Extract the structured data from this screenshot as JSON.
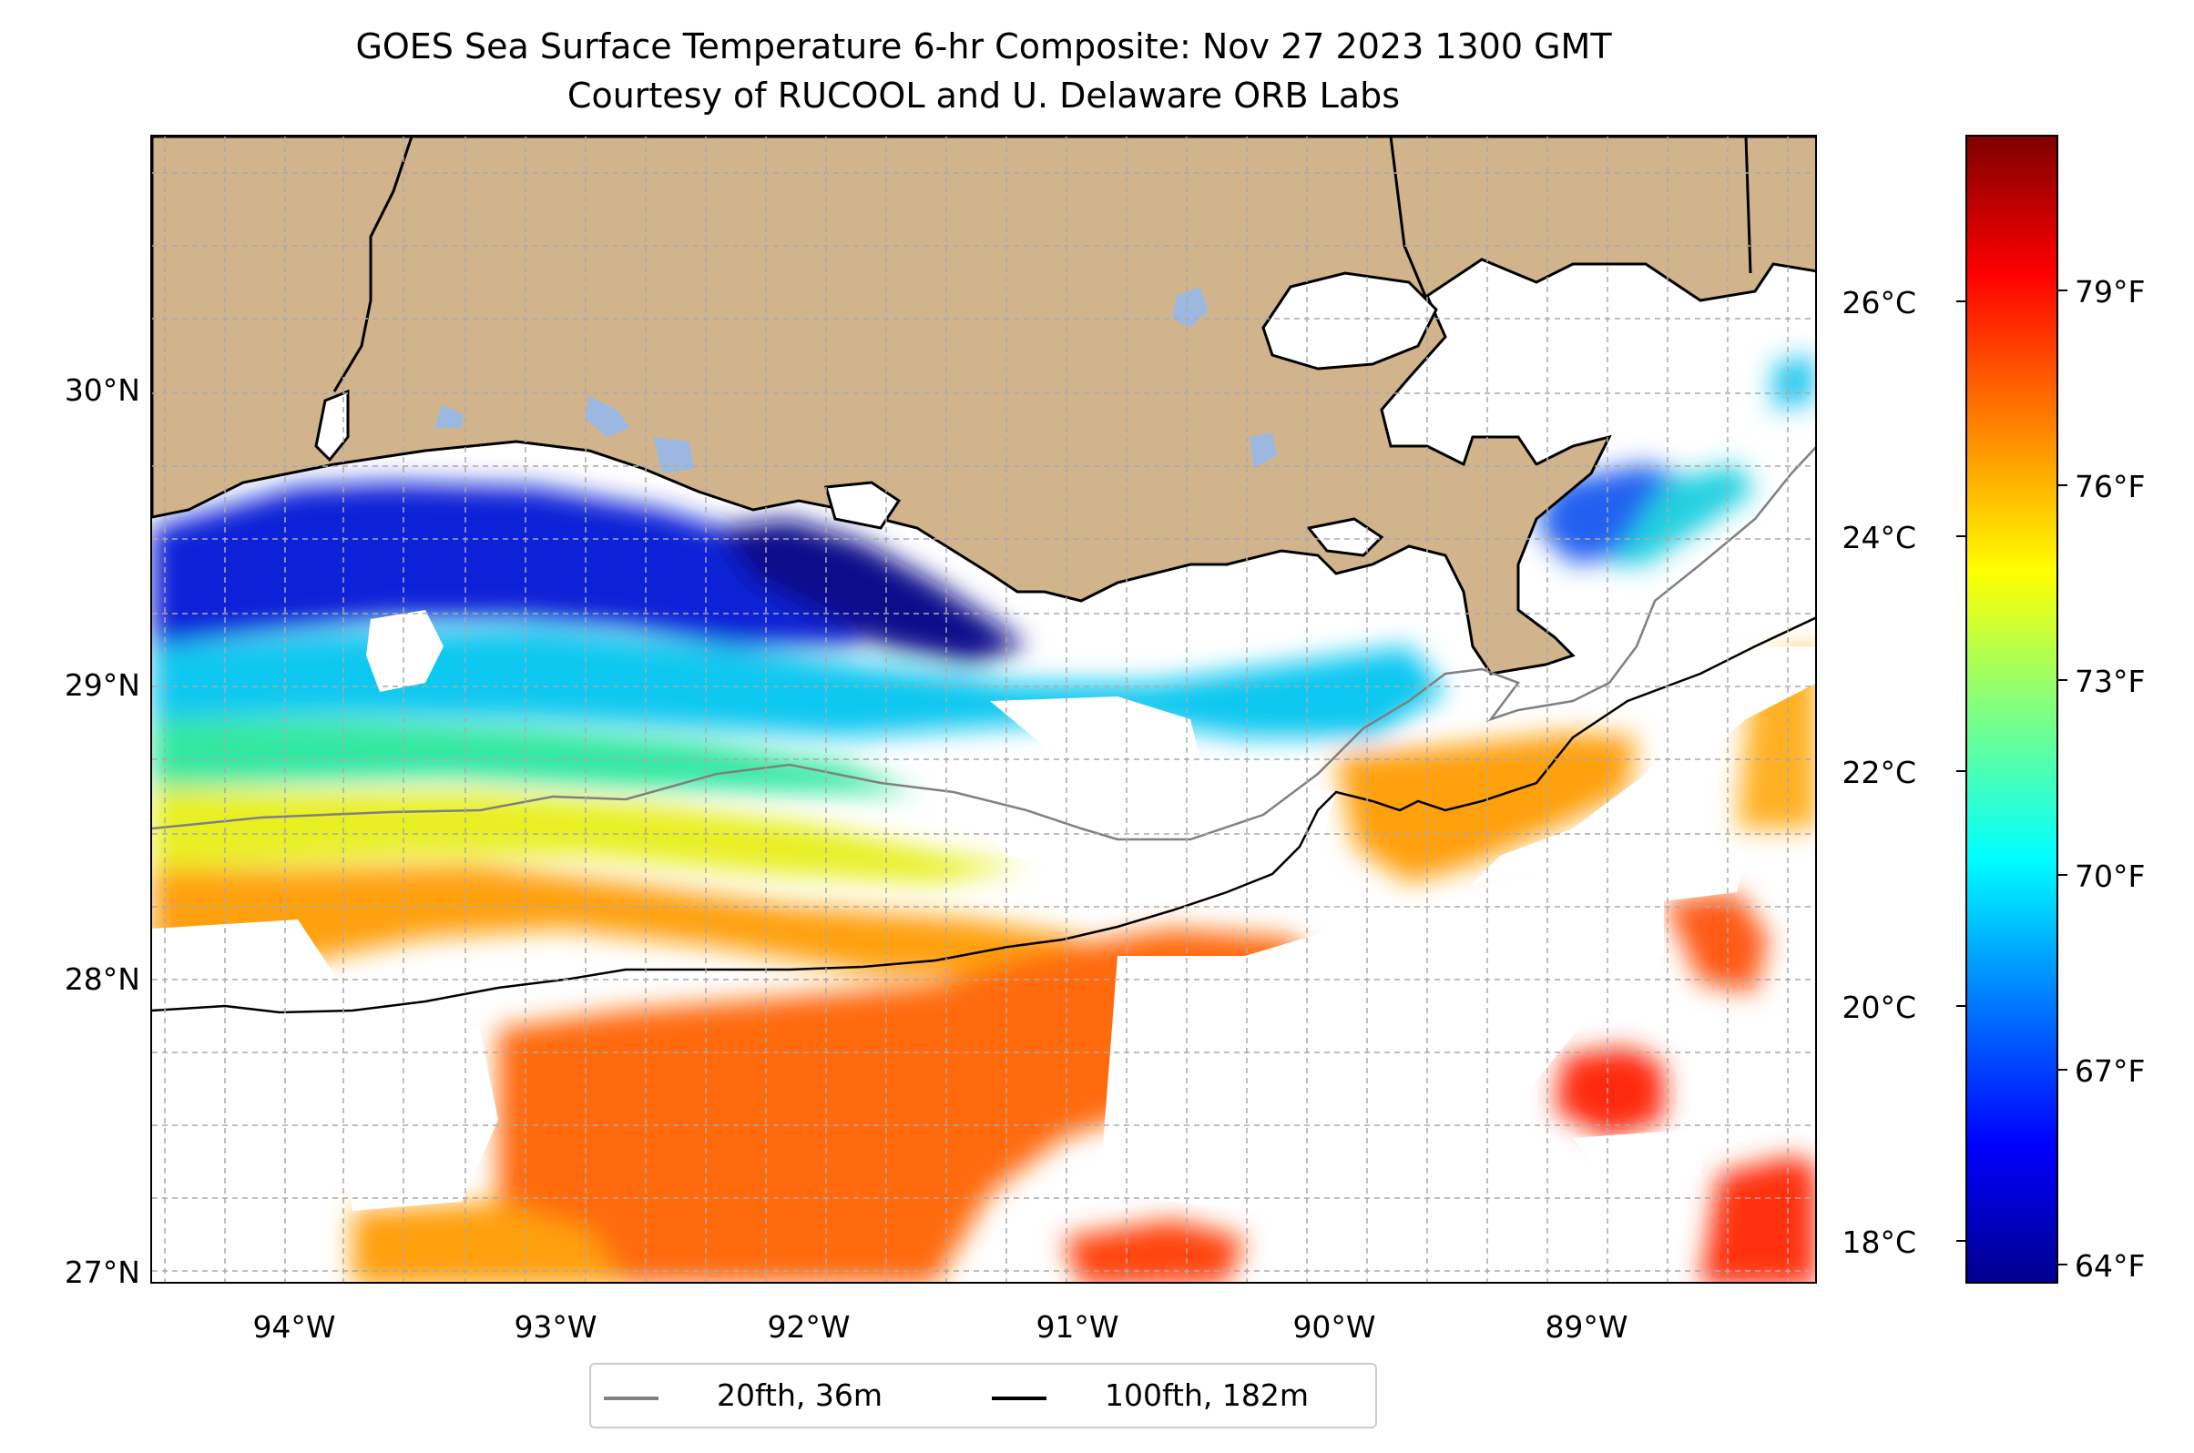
{
  "title": {
    "line1": "GOES Sea Surface Temperature 6-hr Composite: Nov 27 2023 1300 GMT",
    "line2": "Courtesy of RUCOOL and U. Delaware ORB Labs"
  },
  "axes": {
    "lat_labels": [
      "30°N",
      "29°N",
      "28°N",
      "27°N"
    ],
    "lon_labels": [
      "94°W",
      "93°W",
      "92°W",
      "91°W",
      "90°W",
      "89°W"
    ],
    "extent_lon": [
      -94.55,
      -88.0
    ],
    "extent_lat": [
      26.93,
      30.85
    ],
    "gridlines": true
  },
  "legend": {
    "items": [
      {
        "label": "20fth, 36m",
        "color": "#808080"
      },
      {
        "label": "100fth, 182m",
        "color": "#000000"
      }
    ]
  },
  "colorbar": {
    "colormap": "jet",
    "celsius_labels": [
      "26°C",
      "24°C",
      "22°C",
      "20°C",
      "18°C"
    ],
    "fahrenheit_labels": [
      "79°F",
      "76°F",
      "73°F",
      "70°F",
      "67°F",
      "64°F"
    ]
  },
  "colors": {
    "land": "#d2b48c",
    "lakes": "#9db8e0",
    "no_data": "#ffffff"
  }
}
